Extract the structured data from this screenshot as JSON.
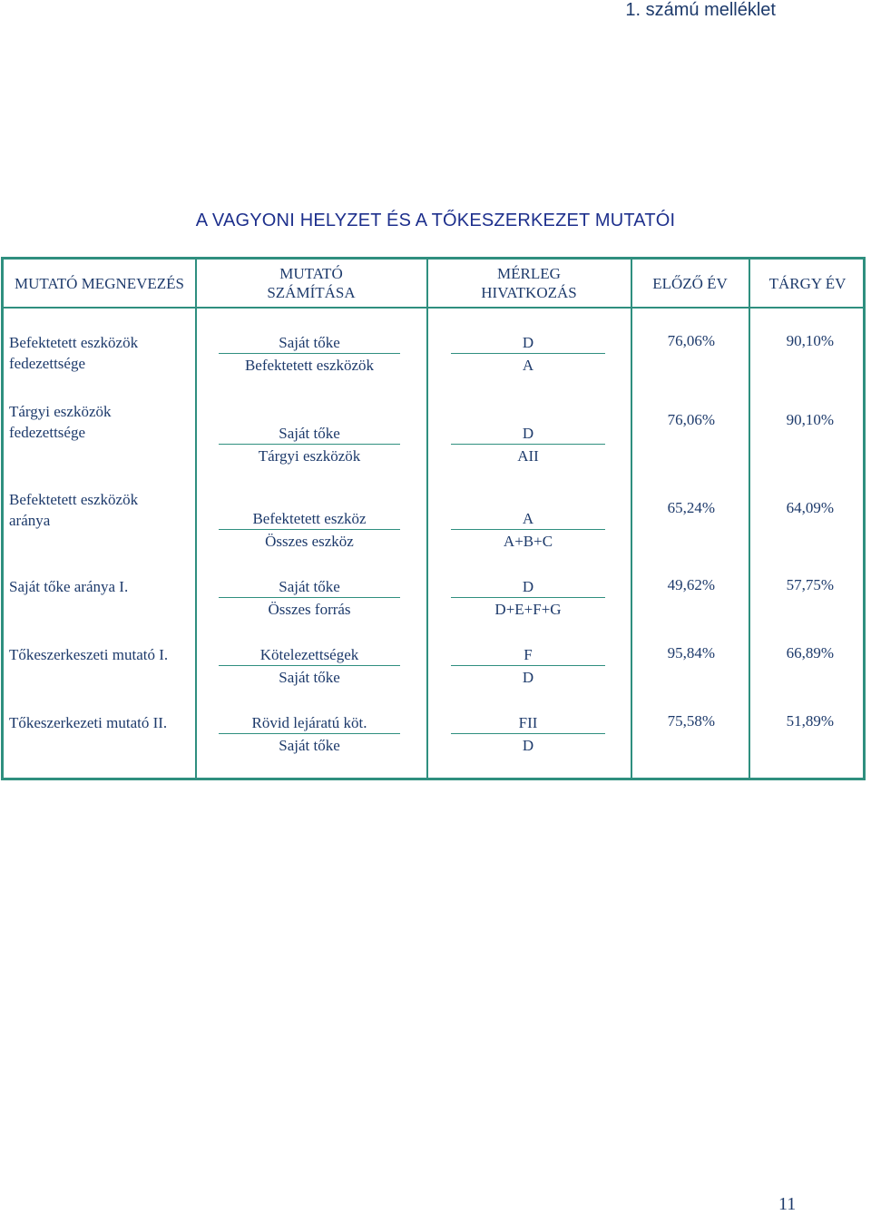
{
  "annex_label": "1. számú melléklet",
  "title": "A VAGYONI HELYZET ÉS A TŐKESZERKEZET MUTATÓI",
  "headers": {
    "name": "MUTATÓ MEGNEVEZÉS",
    "calc": "MUTATÓ SZÁMÍTÁSA",
    "ref": "MÉRLEG HIVATKOZÁS",
    "prev": "ELŐZŐ ÉV",
    "curr": "TÁRGY ÉV"
  },
  "rows": [
    {
      "name": "Befektetett eszközök fedezettsége",
      "calc_num": "Saját tőke",
      "calc_den": "Befektetett eszközök",
      "ref_num": "D",
      "ref_den": "A",
      "prev": "76,06%",
      "curr": "90,10%"
    },
    {
      "name": "Tárgyi eszközök fedezettsége",
      "calc_num": "Saját tőke",
      "calc_den": "Tárgyi eszközök",
      "ref_num": "D",
      "ref_den": "AII",
      "prev": "76,06%",
      "curr": "90,10%"
    },
    {
      "name": "Befektetett eszközök aránya",
      "calc_num": "Befektetett eszköz",
      "calc_den": "Összes eszköz",
      "ref_num": "A",
      "ref_den": "A+B+C",
      "prev": "65,24%",
      "curr": "64,09%"
    },
    {
      "name": "Saját tőke aránya I.",
      "calc_num": "Saját tőke",
      "calc_den": "Összes forrás",
      "ref_num": "D",
      "ref_den": "D+E+F+G",
      "prev": "49,62%",
      "curr": "57,75%"
    },
    {
      "name": "Tőkeszerkeszeti mutató I.",
      "calc_num": "Kötelezettségek",
      "calc_den": "Saját tőke",
      "ref_num": "F",
      "ref_den": "D",
      "prev": "95,84%",
      "curr": "66,89%"
    },
    {
      "name": "Tőkeszerkezeti mutató II.",
      "calc_num": "Rövid lejáratú köt.",
      "calc_den": "Saját tőke",
      "ref_num": "FII",
      "ref_den": "D",
      "prev": "75,58%",
      "curr": "51,89%"
    }
  ],
  "page_number": "11"
}
